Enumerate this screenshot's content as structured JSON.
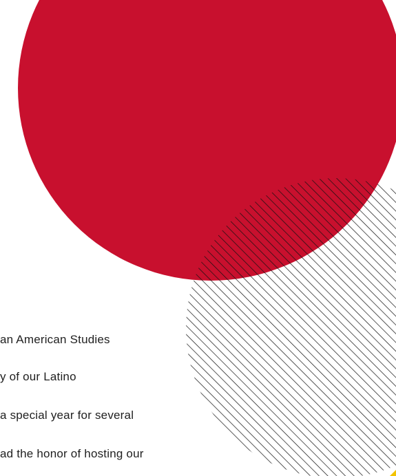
{
  "colors": {
    "accent_red": "#C8102E",
    "hatch": "#111111",
    "accent_yellow": "#F2C300",
    "text": "#1f1f1f",
    "background": "#ffffff"
  },
  "decorations": {
    "large_circle": "red-filled-circle",
    "hatched_circle": "diagonal-line-hatched-circle",
    "corner_mark": "yellow-accent-mark"
  },
  "body": {
    "lines": [
      "an American Studies",
      "y of our Latino",
      " a special year for several",
      "ad the honor of hosting our"
    ]
  }
}
